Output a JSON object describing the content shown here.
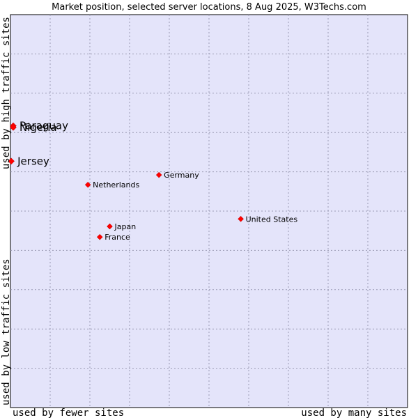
{
  "chart_data": {
    "type": "scatter",
    "title": "Market position, selected server locations, 8 Aug 2025, W3Techs.com",
    "x_axis": {
      "low_label": "used by fewer sites",
      "high_label": "used by many sites",
      "range": [
        0,
        100
      ],
      "grid": true
    },
    "y_axis": {
      "low_label": "used by low traffic sites",
      "high_label": "used by high traffic sites",
      "range": [
        0,
        100
      ],
      "grid": true
    },
    "background_color": "#e4e4fa",
    "point_color": "#ff0000",
    "points": [
      {
        "label": "Paraguay",
        "x": 0.7,
        "y": 71.7,
        "emphasis": true
      },
      {
        "label": "Nigeria",
        "x": 0.7,
        "y": 71.3,
        "emphasis": true
      },
      {
        "label": "Jersey",
        "x": 0.2,
        "y": 62.7,
        "emphasis": true
      },
      {
        "label": "Germany",
        "x": 37.4,
        "y": 59.2,
        "emphasis": false
      },
      {
        "label": "Netherlands",
        "x": 19.5,
        "y": 56.7,
        "emphasis": false
      },
      {
        "label": "United States",
        "x": 58.0,
        "y": 48.0,
        "emphasis": false
      },
      {
        "label": "Japan",
        "x": 25.0,
        "y": 46.1,
        "emphasis": false
      },
      {
        "label": "France",
        "x": 22.5,
        "y": 43.4,
        "emphasis": false
      }
    ]
  }
}
